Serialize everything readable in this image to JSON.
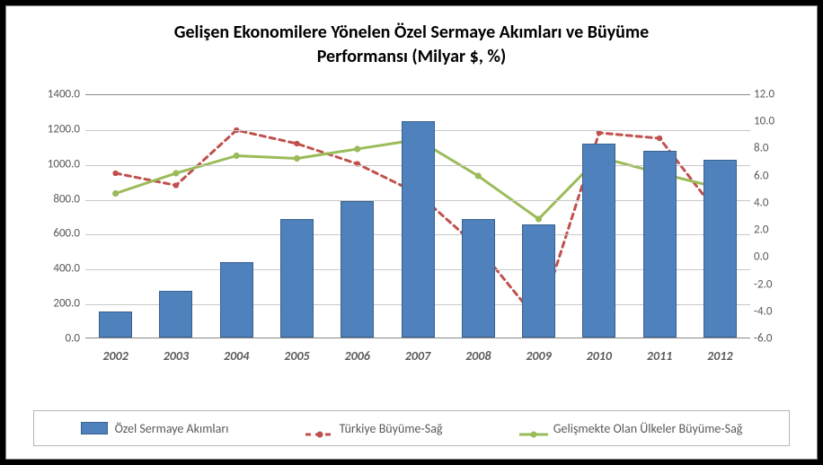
{
  "chart": {
    "type": "combo-bar-line",
    "title_line1": "Gelişen Ekonomilere Yönelen Özel Sermaye Akımları ve Büyüme",
    "title_line2": "Performansı  (Milyar $, %)",
    "title_fontsize": 20,
    "background_color": "#ffffff",
    "grid_color": "#c8c8c8",
    "axis_text_color": "#595959",
    "categories": [
      "2002",
      "2003",
      "2004",
      "2005",
      "2006",
      "2007",
      "2008",
      "2009",
      "2010",
      "2011",
      "2012"
    ],
    "left_axis": {
      "min": 0,
      "max": 1400,
      "step": 200,
      "ticks": [
        "0.0",
        "200.0",
        "400.0",
        "600.0",
        "800.0",
        "1000.0",
        "1200.0",
        "1400.0"
      ]
    },
    "right_axis": {
      "min": -6,
      "max": 12,
      "step": 2,
      "ticks": [
        "-6.0",
        "-4.0",
        "-2.0",
        "0.0",
        "2.0",
        "4.0",
        "6.0",
        "8.0",
        "10.0",
        "12.0"
      ]
    },
    "bars": {
      "label": "Özel Sermaye Akımları",
      "color": "#4f81bd",
      "border_color": "#39618f",
      "values": [
        150,
        270,
        430,
        680,
        780,
        1240,
        680,
        650,
        1110,
        1070,
        1020
      ],
      "bar_width_ratio": 0.55
    },
    "series": [
      {
        "label": "Türkiye Büyüme-Sağ",
        "axis": "right",
        "color": "#c0504d",
        "dash": "6,5",
        "line_width": 3,
        "values": [
          6.2,
          5.3,
          9.4,
          8.4,
          6.9,
          4.7,
          0.7,
          -4.8,
          9.2,
          8.8,
          3.0
        ]
      },
      {
        "label": "Gelişmekte Olan Ülkeler Büyüme-Sağ",
        "axis": "right",
        "color": "#9bbb59",
        "dash": "",
        "line_width": 3,
        "values": [
          4.7,
          6.2,
          7.5,
          7.3,
          8.0,
          8.7,
          6.0,
          2.8,
          7.4,
          6.2,
          5.1
        ]
      }
    ],
    "legend": {
      "items": [
        {
          "kind": "bar",
          "label": "Özel Sermaye Akımları",
          "color": "#4f81bd",
          "border": "#39618f"
        },
        {
          "kind": "line",
          "label": "Türkiye Büyüme-Sağ",
          "color": "#c0504d",
          "dash": "6,5"
        },
        {
          "kind": "line",
          "label": "Gelişmekte Olan Ülkeler Büyüme-Sağ",
          "color": "#9bbb59",
          "dash": ""
        }
      ]
    }
  }
}
